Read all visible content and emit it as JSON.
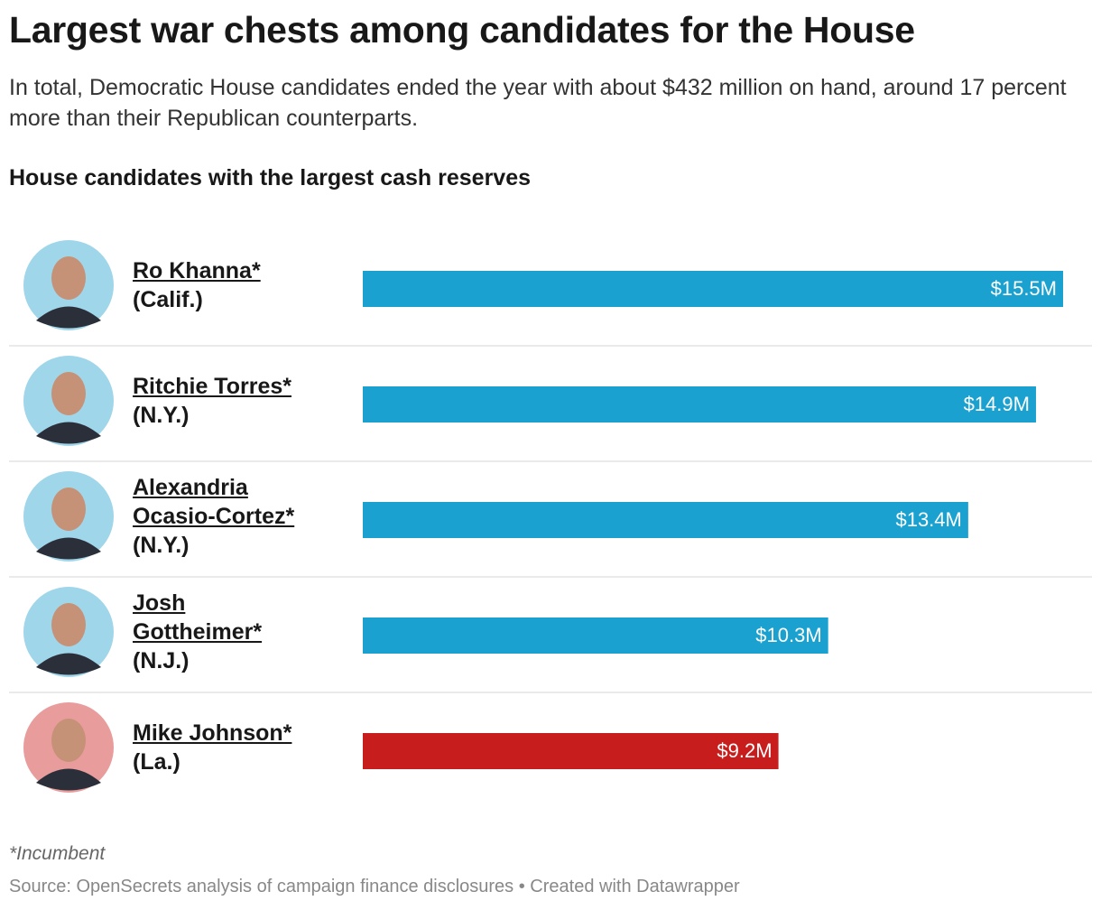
{
  "chart_data": {
    "type": "bar",
    "orientation": "horizontal",
    "title": "Largest war chests among candidates for the House",
    "subtitle": "In total, Democratic House candidates ended the year with about $432 million on hand, around 17 percent more than their Republican counterparts.",
    "chart_title": "House candidates with the largest cash reserves",
    "categories": [
      "Ro Khanna*",
      "Ritchie Torres*",
      "Alexandria Ocasio-Cortez*",
      "Josh Gottheimer*",
      "Mike Johnson*"
    ],
    "states": [
      "(Calif.)",
      "(N.Y.)",
      "(N.Y.)",
      "(N.J.)",
      "(La.)"
    ],
    "values": [
      15.5,
      14.9,
      13.4,
      10.3,
      9.2
    ],
    "value_labels": [
      "$15.5M",
      "$14.9M",
      "$13.4M",
      "$10.3M",
      "$9.2M"
    ],
    "colors": [
      "#1aa1cf",
      "#1aa1cf",
      "#1aa1cf",
      "#1aa1cf",
      "#c71e1d"
    ],
    "photo_colors": [
      "#9fd6ea",
      "#9fd6ea",
      "#9fd6ea",
      "#9fd6ea",
      "#e89c9b"
    ],
    "note": "*Incumbent",
    "source": "Source: OpenSecrets analysis of campaign finance disclosures • Created with Datawrapper"
  }
}
